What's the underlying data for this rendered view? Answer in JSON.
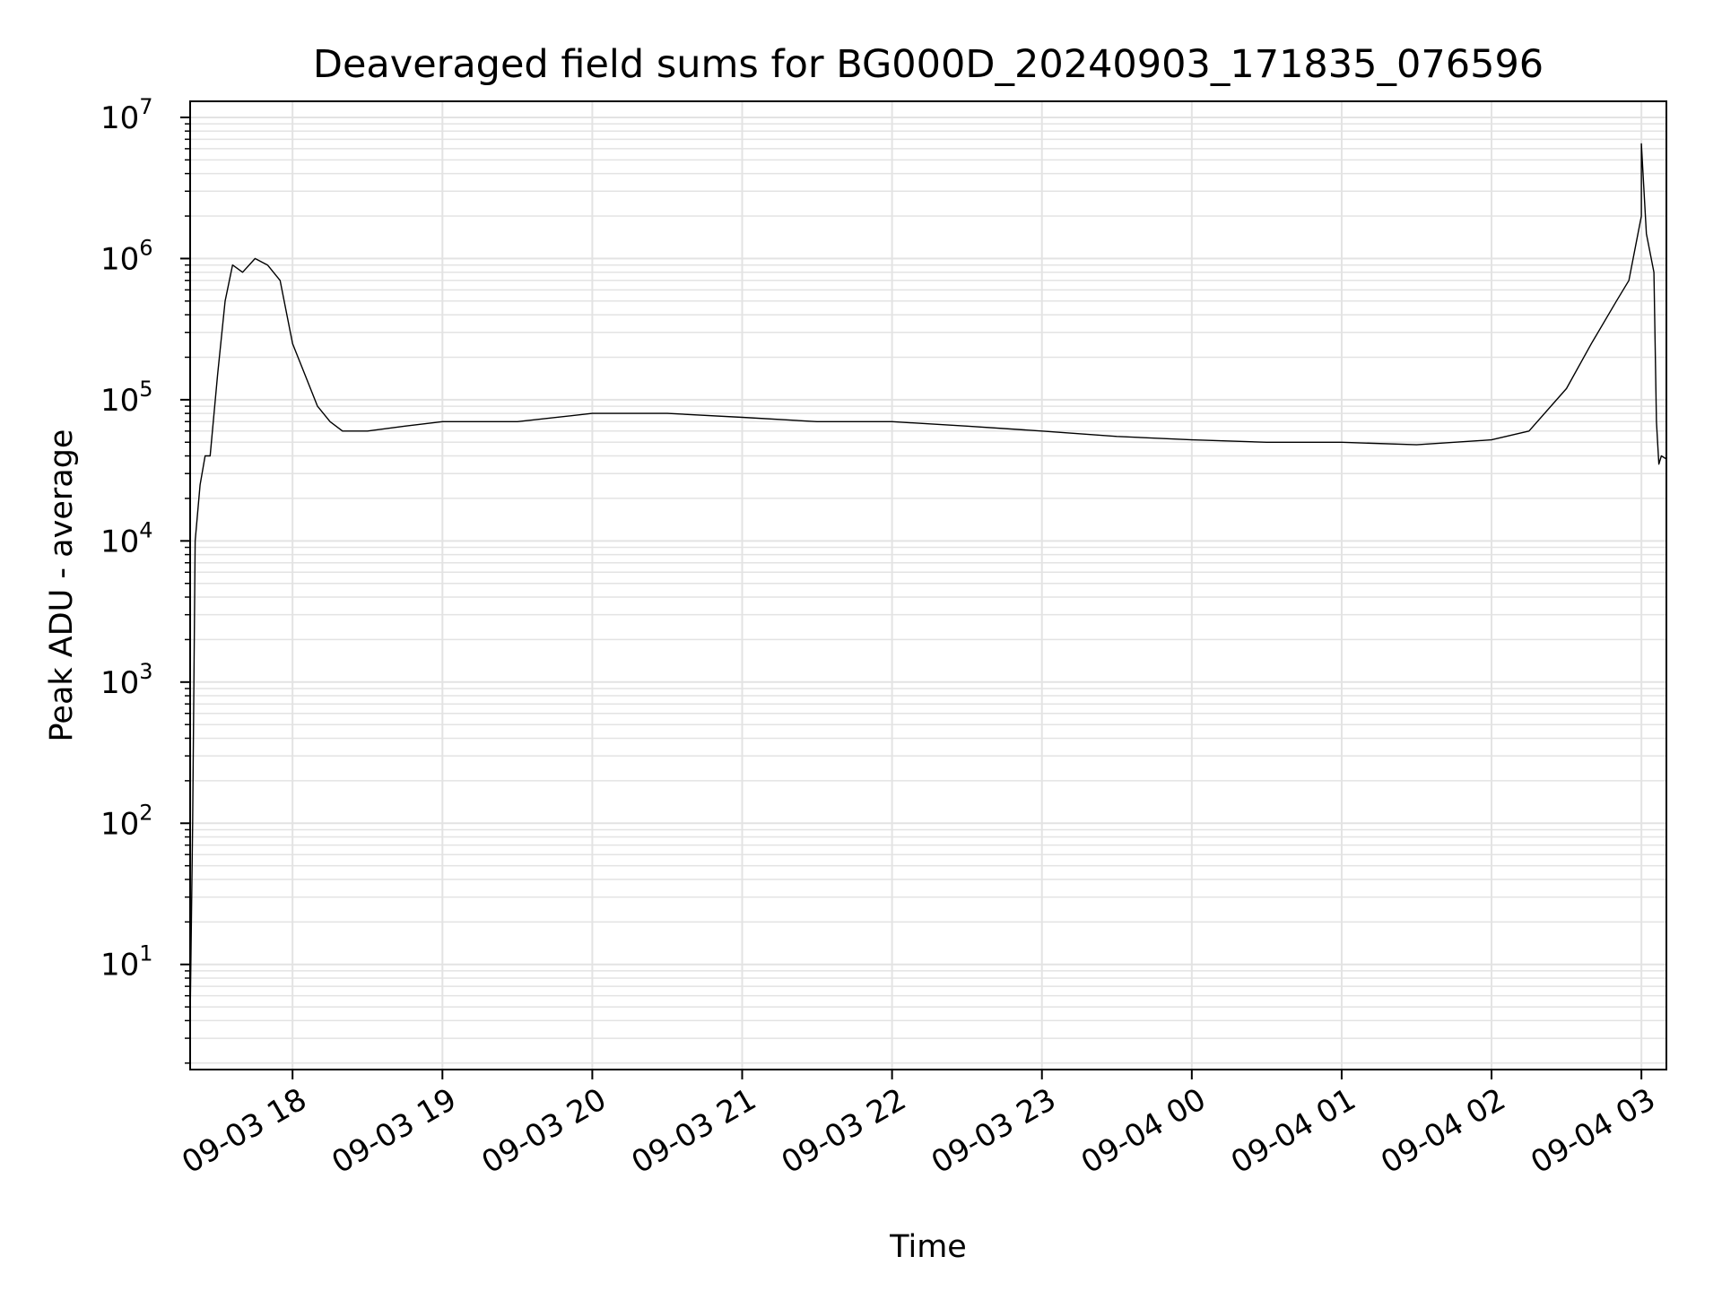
{
  "chart_data": {
    "type": "line",
    "title": "Deaveraged field sums for BG000D_20240903_171835_076596",
    "xlabel": "Time",
    "ylabel": "Peak ADU - average",
    "y_scale": "log",
    "ylim": [
      1.8,
      13000000
    ],
    "xlim": [
      "09-03 17:19",
      "09-04 03:10"
    ],
    "grid": true,
    "line_color": "#000000",
    "grid_color": "#e3e3e3",
    "x_ticks": [
      "09-03 18",
      "09-03 19",
      "09-03 20",
      "09-03 21",
      "09-03 22",
      "09-03 23",
      "09-04 00",
      "09-04 01",
      "09-04 02",
      "09-04 03"
    ],
    "y_ticks": [
      {
        "base": "10",
        "exp": "1",
        "value": 10
      },
      {
        "base": "10",
        "exp": "2",
        "value": 100
      },
      {
        "base": "10",
        "exp": "3",
        "value": 1000
      },
      {
        "base": "10",
        "exp": "4",
        "value": 10000
      },
      {
        "base": "10",
        "exp": "5",
        "value": 100000
      },
      {
        "base": "10",
        "exp": "6",
        "value": 1000000
      },
      {
        "base": "10",
        "exp": "7",
        "value": 10000000
      }
    ],
    "series": [
      {
        "points": [
          [
            "09-03 17:19",
            4
          ],
          [
            "09-03 17:20",
            100
          ],
          [
            "09-03 17:21",
            10000
          ],
          [
            "09-03 17:23",
            25000
          ],
          [
            "09-03 17:25",
            40000
          ],
          [
            "09-03 17:27",
            40000
          ],
          [
            "09-03 17:30",
            150000
          ],
          [
            "09-03 17:33",
            500000
          ],
          [
            "09-03 17:36",
            900000
          ],
          [
            "09-03 17:40",
            800000
          ],
          [
            "09-03 17:45",
            1000000
          ],
          [
            "09-03 17:50",
            900000
          ],
          [
            "09-03 17:55",
            700000
          ],
          [
            "09-03 18:00",
            250000
          ],
          [
            "09-03 18:05",
            150000
          ],
          [
            "09-03 18:10",
            90000
          ],
          [
            "09-03 18:15",
            70000
          ],
          [
            "09-03 18:20",
            60000
          ],
          [
            "09-03 18:30",
            60000
          ],
          [
            "09-03 18:45",
            65000
          ],
          [
            "09-03 19:00",
            70000
          ],
          [
            "09-03 19:30",
            70000
          ],
          [
            "09-03 20:00",
            80000
          ],
          [
            "09-03 20:30",
            80000
          ],
          [
            "09-03 21:00",
            75000
          ],
          [
            "09-03 21:30",
            70000
          ],
          [
            "09-03 22:00",
            70000
          ],
          [
            "09-03 22:30",
            65000
          ],
          [
            "09-03 23:00",
            60000
          ],
          [
            "09-03 23:30",
            55000
          ],
          [
            "09-04 00:00",
            52000
          ],
          [
            "09-04 00:30",
            50000
          ],
          [
            "09-04 01:00",
            50000
          ],
          [
            "09-04 01:30",
            48000
          ],
          [
            "09-04 02:00",
            52000
          ],
          [
            "09-04 02:15",
            60000
          ],
          [
            "09-04 02:30",
            120000
          ],
          [
            "09-04 02:40",
            250000
          ],
          [
            "09-04 02:50",
            500000
          ],
          [
            "09-04 02:55",
            700000
          ],
          [
            "09-04 03:00",
            2000000
          ],
          [
            "09-04 03:00",
            6500000
          ],
          [
            "09-04 03:02",
            1500000
          ],
          [
            "09-04 03:05",
            800000
          ],
          [
            "09-04 03:06",
            70000
          ],
          [
            "09-04 03:07",
            35000
          ],
          [
            "09-04 03:08",
            40000
          ],
          [
            "09-04 03:10",
            38000
          ]
        ]
      }
    ]
  }
}
